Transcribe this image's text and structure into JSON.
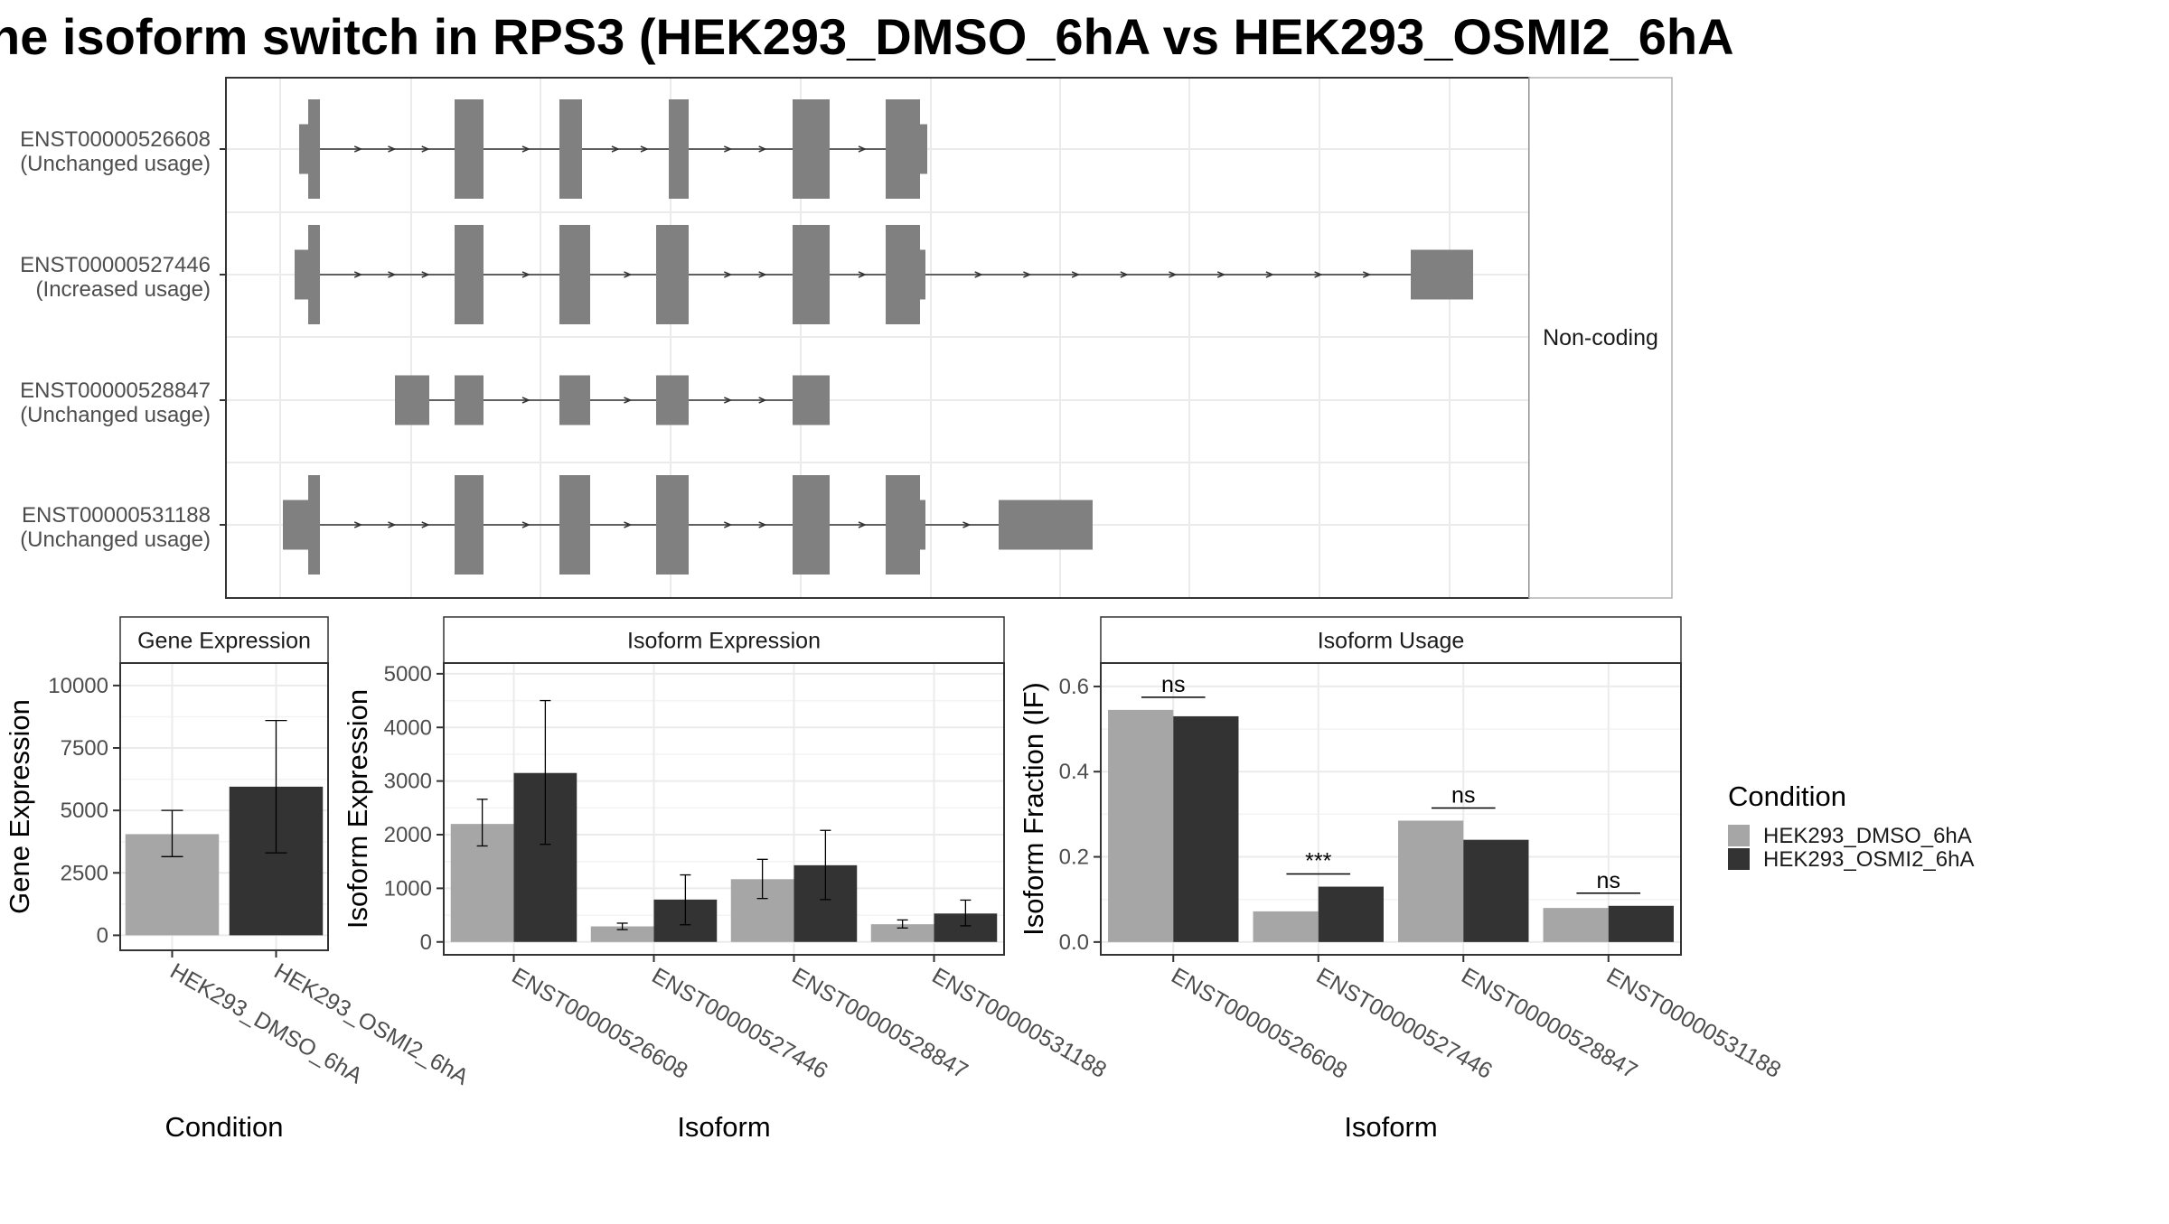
{
  "title": "he isoform switch in RPS3 (HEK293_DMSO_6hA vs HEK293_OSMI2_6hA",
  "colors": {
    "exon": "#808080",
    "dmso": "#a6a6a6",
    "osmi": "#333333",
    "grid": "#ebebeb",
    "frame": "#333333",
    "strip": "#ffffff"
  },
  "structure": {
    "facet_label": "Non-coding",
    "isoforms": [
      {
        "id": "ENST00000526608",
        "usage": "(Unchanged usage)"
      },
      {
        "id": "ENST00000527446",
        "usage": "(Increased usage)"
      },
      {
        "id": "ENST00000528847",
        "usage": "(Unchanged usage)"
      },
      {
        "id": "ENST00000531188",
        "usage": "(Unchanged usage)"
      }
    ]
  },
  "legend": {
    "title": "Condition",
    "items": [
      "HEK293_DMSO_6hA",
      "HEK293_OSMI2_6hA"
    ]
  },
  "chart_data": [
    {
      "type": "bar",
      "title": "Gene Expression",
      "xlabel": "Condition",
      "ylabel": "Gene Expression",
      "categories": [
        "HEK293_DMSO_6hA",
        "HEK293_OSMI2_6hA"
      ],
      "values": [
        4050,
        5950
      ],
      "error_low": [
        3150,
        3300
      ],
      "error_high": [
        5000,
        8600
      ],
      "ylim": [
        -600,
        10900
      ],
      "yticks": [
        0,
        2500,
        5000,
        7500,
        10000
      ],
      "yticklabels": [
        "0",
        "2500",
        "5000",
        "7500",
        "10000"
      ],
      "grid": true
    },
    {
      "type": "bar",
      "title": "Isoform Expression",
      "xlabel": "Isoform",
      "ylabel": "Isoform Expression",
      "categories": [
        "ENST00000526608",
        "ENST00000527446",
        "ENST00000528847",
        "ENST00000531188"
      ],
      "series": [
        {
          "name": "HEK293_DMSO_6hA",
          "values": [
            2200,
            290,
            1170,
            330
          ],
          "error_low": [
            1790,
            230,
            810,
            260
          ],
          "error_high": [
            2660,
            350,
            1540,
            410
          ]
        },
        {
          "name": "HEK293_OSMI2_6hA",
          "values": [
            3150,
            790,
            1430,
            530
          ],
          "error_low": [
            1820,
            320,
            790,
            300
          ],
          "error_high": [
            4500,
            1250,
            2080,
            780
          ]
        }
      ],
      "ylim": [
        -240,
        5200
      ],
      "yticks": [
        0,
        1000,
        2000,
        3000,
        4000,
        5000
      ],
      "yticklabels": [
        "0",
        "1000",
        "2000",
        "3000",
        "4000",
        "5000"
      ],
      "grid": true
    },
    {
      "type": "bar",
      "title": "Isoform Usage",
      "xlabel": "Isoform",
      "ylabel": "Isoform Fraction (IF)",
      "categories": [
        "ENST00000526608",
        "ENST00000527446",
        "ENST00000528847",
        "ENST00000531188"
      ],
      "series": [
        {
          "name": "HEK293_DMSO_6hA",
          "values": [
            0.545,
            0.072,
            0.285,
            0.08
          ]
        },
        {
          "name": "HEK293_OSMI2_6hA",
          "values": [
            0.53,
            0.13,
            0.24,
            0.085
          ]
        }
      ],
      "significance": [
        "ns",
        "***",
        "ns",
        "ns"
      ],
      "ylim": [
        -0.03,
        0.655
      ],
      "yticks": [
        0,
        0.2,
        0.4,
        0.6
      ],
      "yticklabels": [
        "0.0",
        "0.2",
        "0.4",
        "0.6"
      ],
      "grid": true
    }
  ]
}
